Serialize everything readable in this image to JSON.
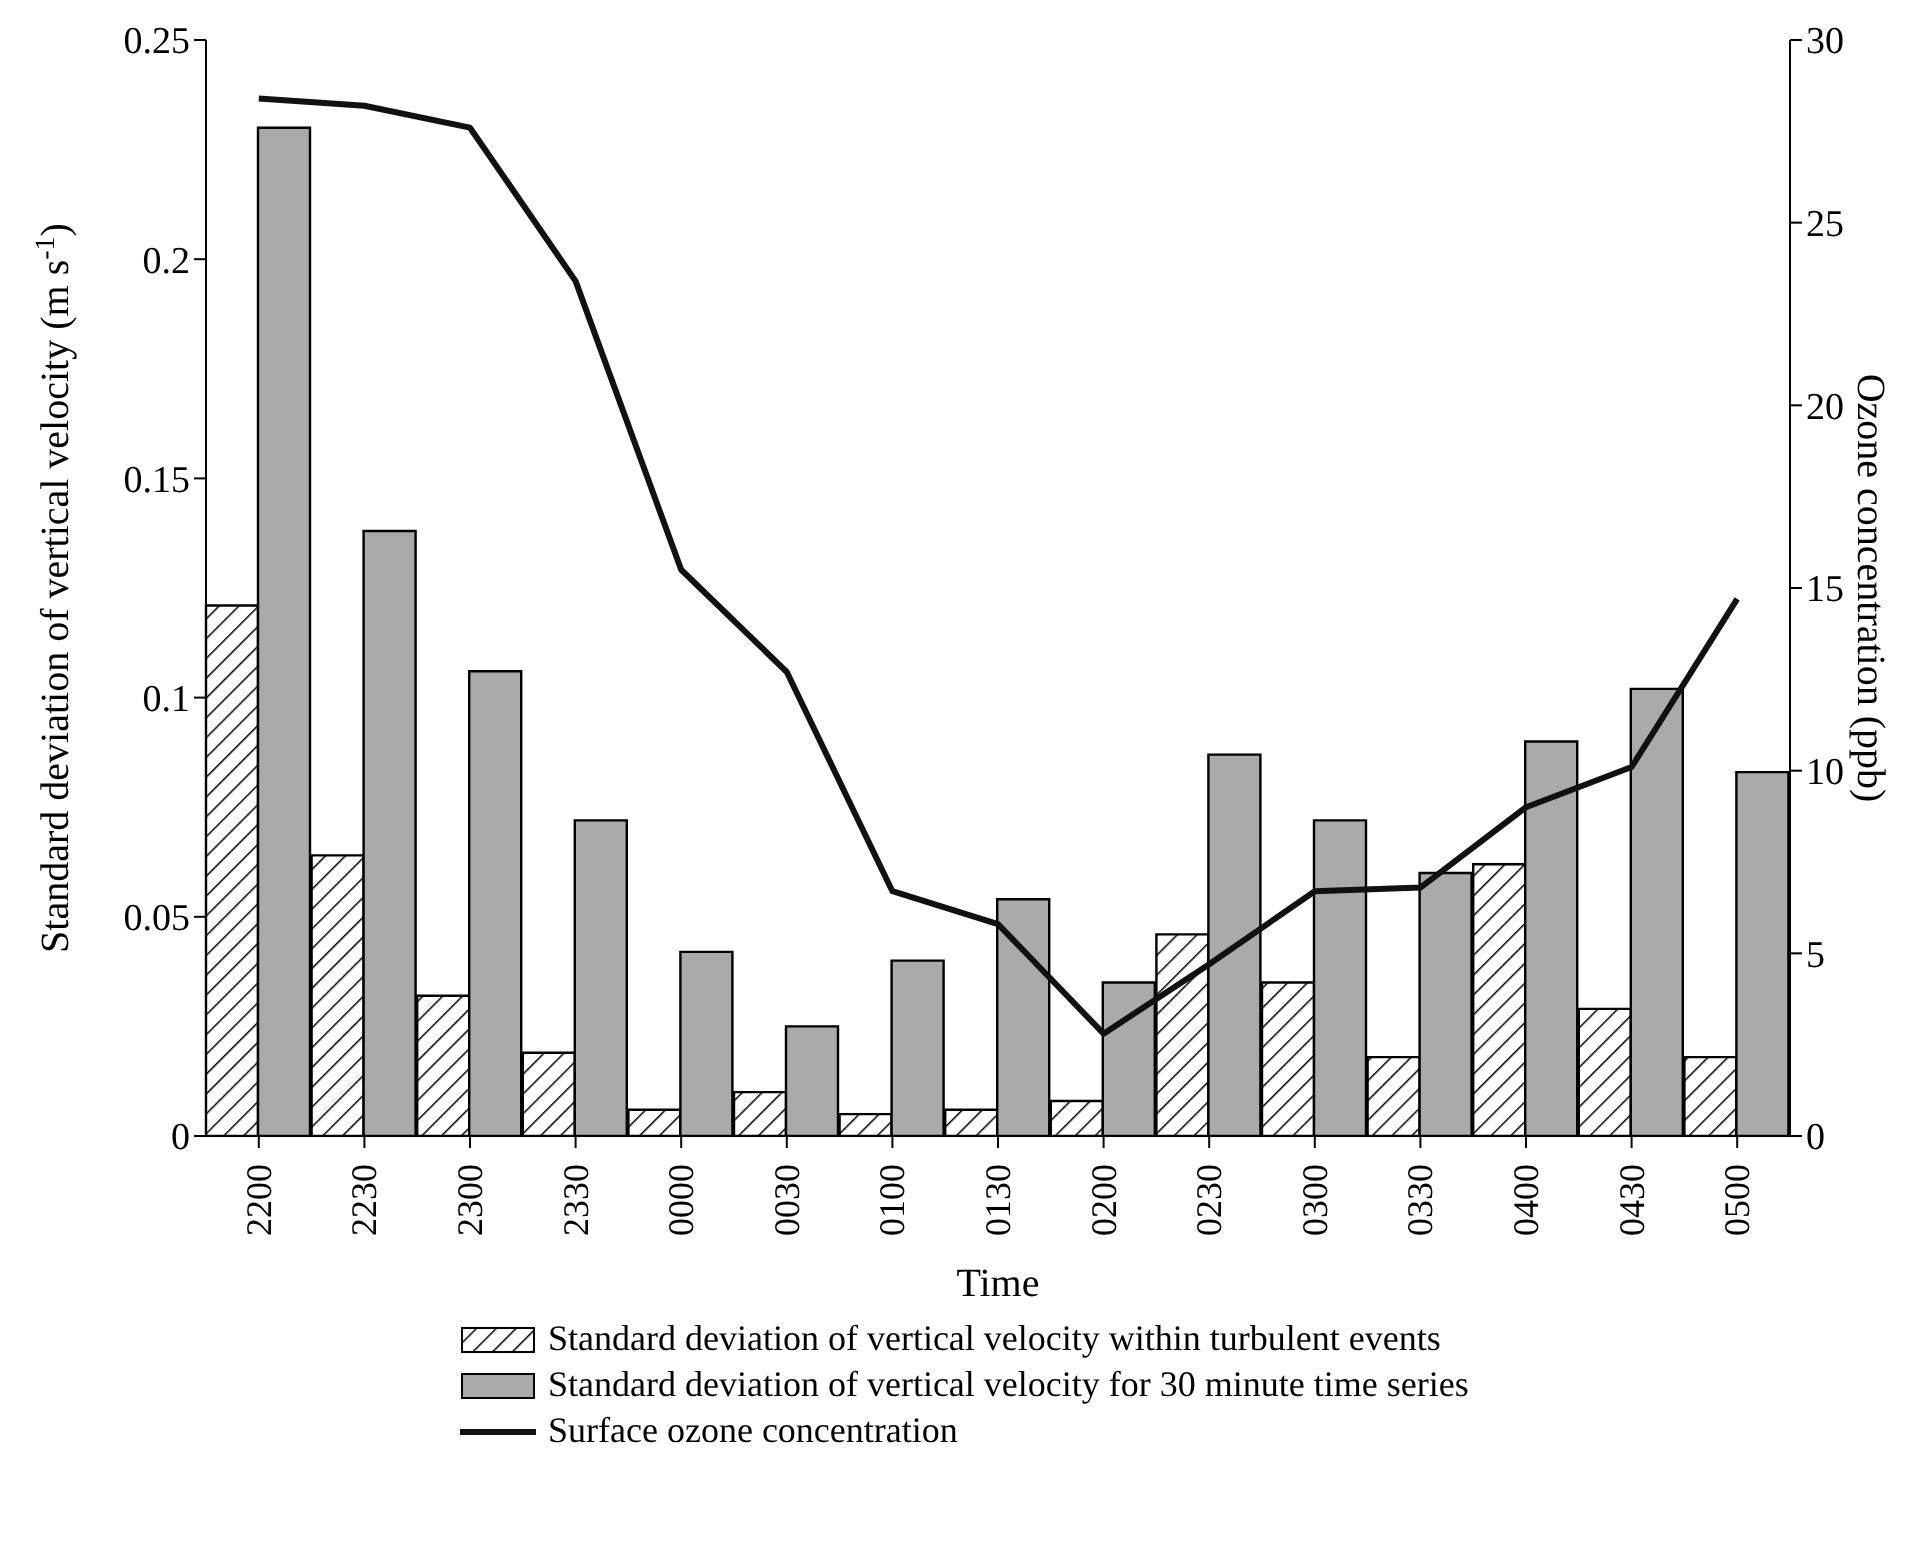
{
  "chart_data": {
    "type": "bar",
    "xlabel": "Time",
    "ylabel": "Standard deviation of vertical velocity (m s$^{-1}$)",
    "y2label": "Ozone concentration (ppb)",
    "categories": [
      "2200",
      "2230",
      "2300",
      "2330",
      "0000",
      "0030",
      "0100",
      "0130",
      "0200",
      "0230",
      "0300",
      "0330",
      "0400",
      "0430",
      "0500"
    ],
    "series": [
      {
        "name": "Standard deviation of vertical velocity within turbulent events",
        "type": "bar",
        "color": "#000000",
        "values": [
          0.121,
          0.064,
          0.032,
          0.019,
          0.006,
          0.01,
          0.005,
          0.006,
          0.008,
          0.046,
          0.035,
          0.018,
          0.062,
          0.029,
          0.018
        ]
      },
      {
        "name": "Standard deviation of vertical velocity for 30 minute time series",
        "color": "#aaaaaa",
        "values": [
          0.23,
          0.138,
          0.106,
          0.072,
          0.042,
          0.025,
          0.04,
          0.054,
          0.035,
          0.087,
          0.072,
          0.06,
          0.09,
          0.102,
          0.083
        ]
      },
      {
        "name": "Surface ozone concentration",
        "type": "line",
        "axis": "y2",
        "color": "#111111",
        "values": [
          28.4,
          28.2,
          27.6,
          23.4,
          15.5,
          12.7,
          6.7,
          5.8,
          2.8,
          4.7,
          6.7,
          6.8,
          9.0,
          10.1,
          14.7
        ]
      }
    ],
    "ylim": [
      0,
      0.25
    ],
    "yticks": [
      0,
      0.05,
      0.1,
      0.15,
      0.2,
      0.25
    ],
    "y2lim": [
      0,
      30
    ],
    "y2ticks": [
      0,
      5,
      10,
      15,
      20,
      25,
      30
    ],
    "grid": false,
    "legend": "bottom",
    "marker": "none",
    "line_style": "solid"
  }
}
